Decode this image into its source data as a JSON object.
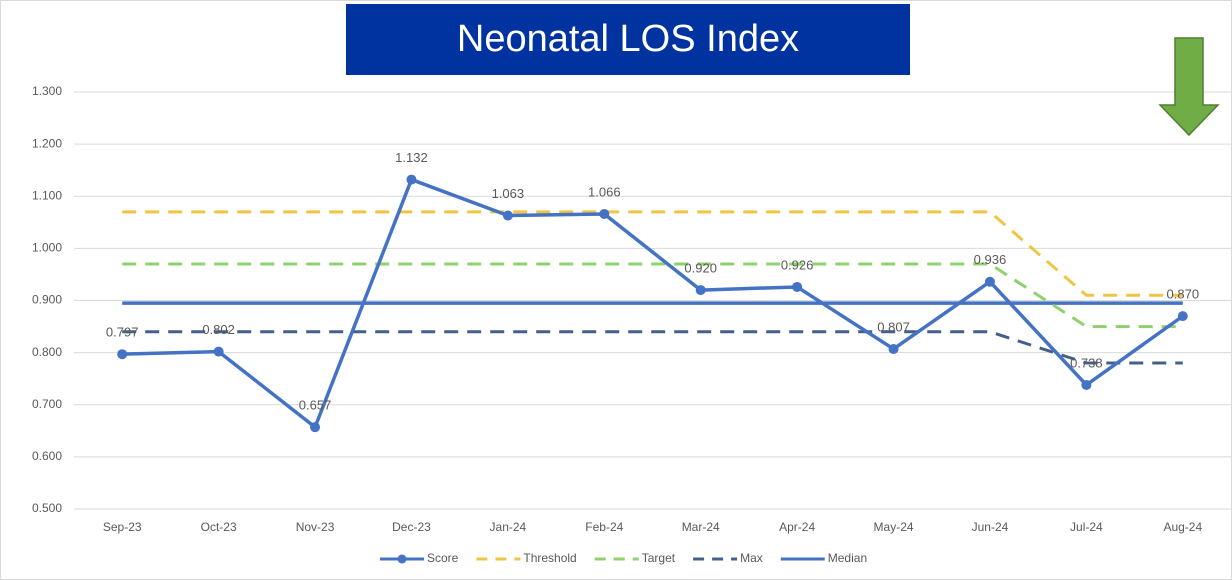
{
  "chart_data": {
    "type": "line",
    "title": "Neonatal LOS Index",
    "categories": [
      "Sep-23",
      "Oct-23",
      "Nov-23",
      "Dec-23",
      "Jan-24",
      "Feb-24",
      "Mar-24",
      "Apr-24",
      "May-24",
      "Jun-24",
      "Jul-24",
      "Aug-24"
    ],
    "series": [
      {
        "name": "Score",
        "color": "#4472c4",
        "dashed": false,
        "markers": true,
        "values": [
          0.797,
          0.802,
          0.657,
          1.132,
          1.063,
          1.066,
          0.92,
          0.926,
          0.807,
          0.936,
          0.738,
          0.87
        ],
        "value_labels": [
          "0.797",
          "0.802",
          "0.657",
          "1.132",
          "1.063",
          "1.066",
          "0.920",
          "0.926",
          "0.807",
          "0.936",
          "0.738",
          "0.870"
        ]
      },
      {
        "name": "Threshold",
        "color": "#f2c443",
        "dashed": true,
        "markers": false,
        "values": [
          1.07,
          1.07,
          1.07,
          1.07,
          1.07,
          1.07,
          1.07,
          1.07,
          1.07,
          1.07,
          0.91,
          0.91
        ]
      },
      {
        "name": "Target",
        "color": "#8fd16f",
        "dashed": true,
        "markers": false,
        "values": [
          0.97,
          0.97,
          0.97,
          0.97,
          0.97,
          0.97,
          0.97,
          0.97,
          0.97,
          0.97,
          0.85,
          0.85
        ]
      },
      {
        "name": "Max",
        "color": "#44608a",
        "dashed": true,
        "markers": false,
        "values": [
          0.84,
          0.84,
          0.84,
          0.84,
          0.84,
          0.84,
          0.84,
          0.84,
          0.84,
          0.84,
          0.78,
          0.78
        ]
      },
      {
        "name": "Median",
        "color": "#4472c4",
        "dashed": false,
        "markers": false,
        "values": [
          0.895,
          0.895,
          0.895,
          0.895,
          0.895,
          0.895,
          0.895,
          0.895,
          0.895,
          0.895,
          0.895,
          0.895
        ]
      }
    ],
    "ylim": [
      0.5,
      1.3
    ],
    "yticks": [
      {
        "value": 0.5,
        "label": "0.500"
      },
      {
        "value": 0.6,
        "label": "0.600"
      },
      {
        "value": 0.7,
        "label": "0.700"
      },
      {
        "value": 0.8,
        "label": "0.800"
      },
      {
        "value": 0.9,
        "label": "0.900"
      },
      {
        "value": 1.0,
        "label": "1.000"
      },
      {
        "value": 1.1,
        "label": "1.100"
      },
      {
        "value": 1.2,
        "label": "1.200"
      },
      {
        "value": 1.3,
        "label": "1.300"
      }
    ],
    "grid": true,
    "legend": "bottom"
  }
}
